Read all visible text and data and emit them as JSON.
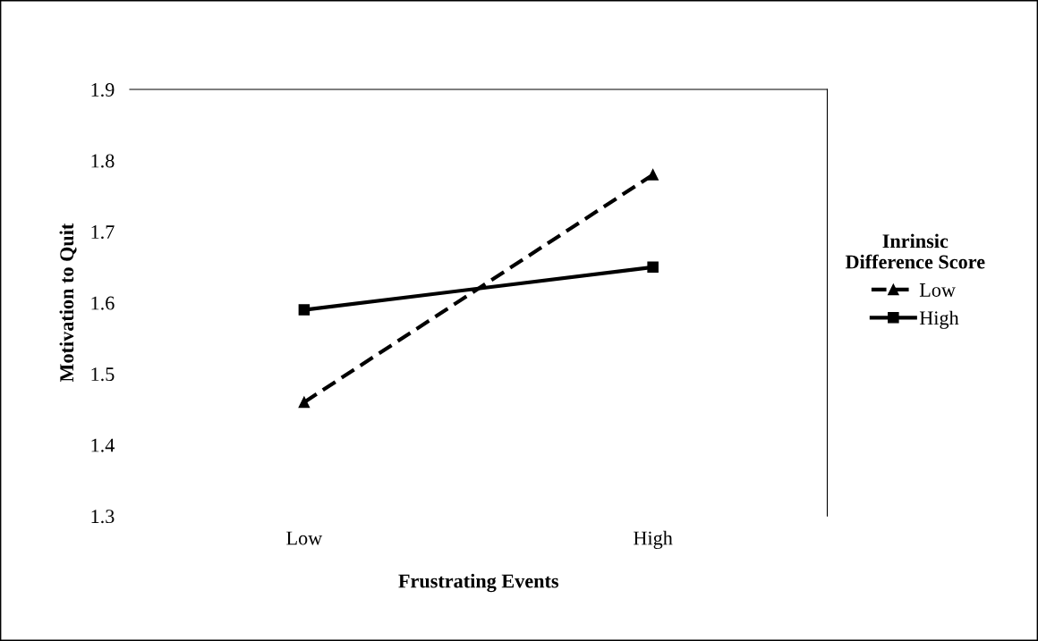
{
  "chart_data": {
    "type": "line",
    "xlabel": "Frustrating Events",
    "ylabel": "Motivation to Quit",
    "legend_title": "Inrinsic\nDifference Score",
    "categories": [
      "Low",
      "High"
    ],
    "series": [
      {
        "name": "Low",
        "color": "#000000",
        "values": [
          1.46,
          1.78
        ],
        "marker": "triangle",
        "line_style": "dashed"
      },
      {
        "name": "High",
        "color": "#000000",
        "values": [
          1.59,
          1.65
        ],
        "marker": "square",
        "line_style": "solid"
      }
    ],
    "ylim": [
      1.3,
      1.9
    ],
    "yticks": [
      1.3,
      1.4,
      1.5,
      1.6,
      1.7,
      1.8,
      1.9
    ],
    "grid": false,
    "legend": "right"
  }
}
